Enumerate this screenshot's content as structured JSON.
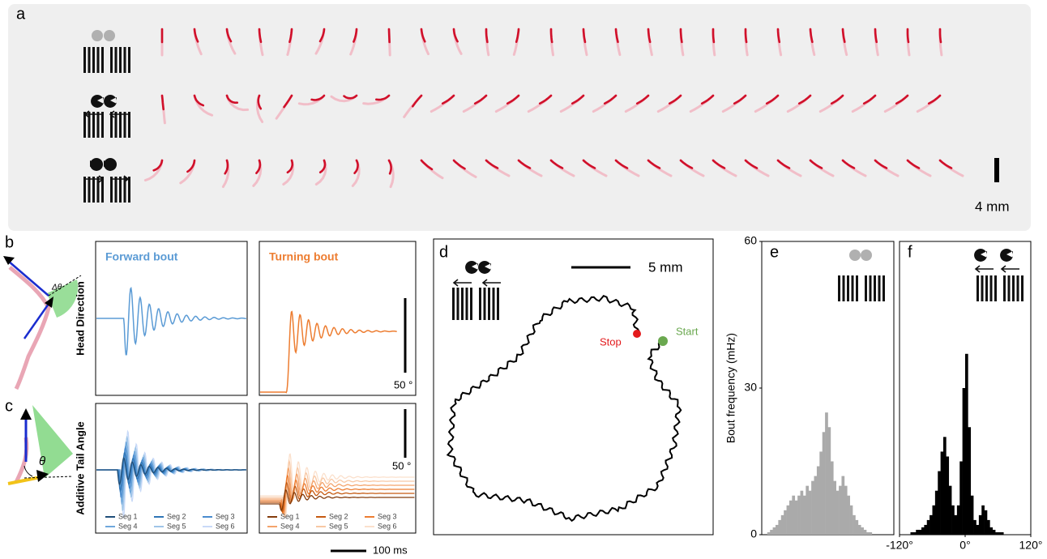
{
  "panel_a": {
    "label": "a",
    "scale": "4 mm"
  },
  "panel_b": {
    "label": "b",
    "forward_title": "Forward bout",
    "turning_title": "Turning bout",
    "y_label": "Head Direction",
    "scale": "50 °",
    "angle": "Δθ"
  },
  "panel_c": {
    "label": "c",
    "y_label": "Additive Tail Angle",
    "scale": "50 °",
    "angle": "θ",
    "forward_legend": [
      "Seg 1",
      "Seg 2",
      "Seg 3",
      "Seg 4",
      "Seg 5",
      "Seg 6"
    ],
    "turning_legend": [
      "Seg 1",
      "Seg 2",
      "Seg 3",
      "Seg 4",
      "Seg 5",
      "Seg 6"
    ],
    "time_scale": "100 ms"
  },
  "panel_d": {
    "label": "d",
    "scale": "5 mm",
    "stop": "Stop",
    "start": "Start"
  },
  "chart_data": [
    {
      "type": "histogram",
      "panel_label": "e",
      "y_label": "Bout frequency (mHz)",
      "color": "#aaaaaa",
      "bins": [
        -120,
        -115,
        -110,
        -105,
        -100,
        -95,
        -90,
        -85,
        -80,
        -75,
        -70,
        -65,
        -60,
        -55,
        -50,
        -45,
        -40,
        -35,
        -30,
        -25,
        -20,
        -15,
        -10,
        -5,
        0,
        5,
        10,
        15,
        20,
        25,
        30,
        35,
        40,
        45,
        50,
        55,
        60,
        65,
        70,
        75,
        80,
        85,
        90,
        95,
        100,
        105,
        110,
        115,
        120
      ],
      "values": [
        0,
        0,
        0.5,
        1,
        1.5,
        2,
        3,
        4,
        5,
        6,
        7,
        8,
        7,
        8,
        9,
        8,
        10,
        9,
        11,
        12,
        14,
        17,
        21,
        25,
        22,
        15,
        11,
        9,
        10,
        12,
        10,
        8,
        6,
        4,
        3,
        2,
        1.5,
        1,
        0.5,
        0.5,
        0,
        0,
        0,
        0,
        0,
        0,
        0,
        0
      ],
      "xlim": [
        -120,
        120
      ],
      "ylim": [
        0,
        60
      ],
      "yticks": [
        0,
        30,
        60
      ]
    },
    {
      "type": "histogram",
      "panel_label": "f",
      "color": "#000000",
      "bins": [
        -120,
        -115,
        -110,
        -105,
        -100,
        -95,
        -90,
        -85,
        -80,
        -75,
        -70,
        -65,
        -60,
        -55,
        -50,
        -45,
        -40,
        -35,
        -30,
        -25,
        -20,
        -15,
        -10,
        -5,
        0,
        5,
        10,
        15,
        20,
        25,
        30,
        35,
        40,
        45,
        50,
        55,
        60,
        65,
        70,
        75,
        80,
        85,
        90,
        95,
        100,
        105,
        110,
        115,
        120
      ],
      "values": [
        0,
        0,
        0,
        0,
        0.5,
        0.5,
        1,
        1,
        1.5,
        2,
        3,
        4,
        6,
        9,
        13,
        17,
        20,
        16,
        10,
        6,
        4,
        6,
        15,
        30,
        37,
        22,
        8,
        3,
        2,
        4,
        6,
        5,
        3,
        1.5,
        1,
        0.5,
        0.5,
        0.5,
        0,
        0,
        0,
        0,
        0,
        0,
        0,
        0,
        0,
        0
      ],
      "xlim": [
        -120,
        120
      ],
      "ylim": [
        0,
        60
      ],
      "xticks": [
        {
          "value": -120,
          "label": "-120°"
        },
        {
          "value": 0,
          "label": "0°"
        },
        {
          "value": 120,
          "label": "120°"
        }
      ]
    }
  ]
}
